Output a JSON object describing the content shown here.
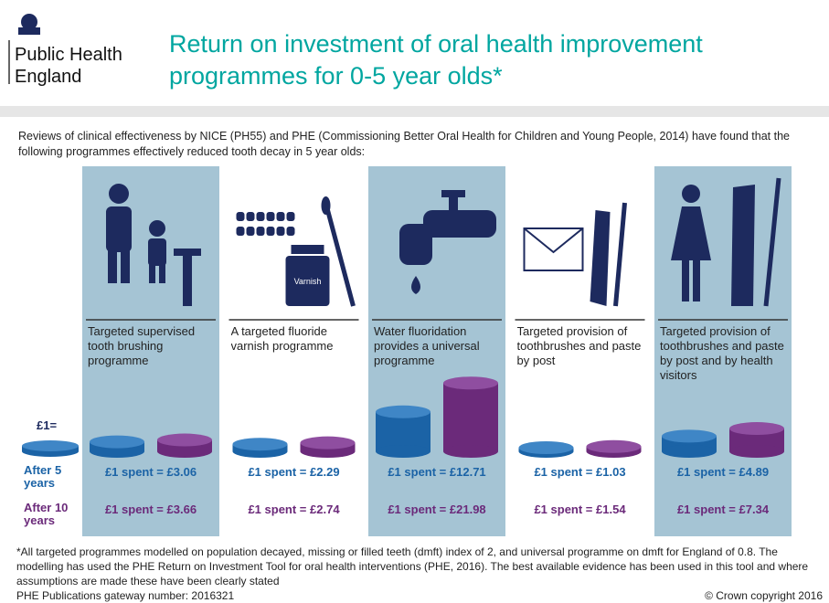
{
  "header": {
    "org_line1": "Public Health",
    "org_line2": "England",
    "title_line1": "Return on investment of oral health improvement",
    "title_line2": "programmes for 0-5 year olds*"
  },
  "intro": "Reviews of clinical effectiveness by NICE (PH55) and PHE (Commissioning Better Oral Health for Children and Young People, 2014) have found that the following programmes effectively reduced tooth decay in 5 year olds:",
  "legend": {
    "unit": "£1=",
    "after_5": "After 5 years",
    "after_10": "After 10 years"
  },
  "programmes": [
    {
      "label": "Targeted supervised tooth brushing programme",
      "after_5": {
        "value": 3.06,
        "label": "£1 spent = £3.06"
      },
      "after_10": {
        "value": 3.66,
        "label": "£1 spent = £3.66"
      }
    },
    {
      "label": "A targeted fluoride varnish programme",
      "icon_text": "Varnish",
      "after_5": {
        "value": 2.29,
        "label": "£1 spent = £2.29"
      },
      "after_10": {
        "value": 2.74,
        "label": "£1 spent = £2.74"
      }
    },
    {
      "label": "Water fluoridation provides a universal programme",
      "after_5": {
        "value": 12.71,
        "label": "£1 spent = £12.71"
      },
      "after_10": {
        "value": 21.98,
        "label": "£1 spent = £21.98"
      }
    },
    {
      "label": "Targeted provision of toothbrushes and paste by post",
      "after_5": {
        "value": 1.03,
        "label": "£1 spent = £1.03"
      },
      "after_10": {
        "value": 1.54,
        "label": "£1 spent = £1.54"
      }
    },
    {
      "label": "Targeted provision of toothbrushes and paste by post and by health visitors",
      "after_5": {
        "value": 4.89,
        "label": "£1 spent = £4.89"
      },
      "after_10": {
        "value": 7.34,
        "label": "£1 spent = £7.34"
      }
    }
  ],
  "footnote": "*All targeted programmes modelled on population decayed, missing or filled teeth (dmft) index of 2, and universal programme on dmft for England of 0.8. The modelling has used the PHE Return on Investment Tool for oral health interventions (PHE, 2016). The best available evidence has been used in this tool and where assumptions are made these have been clearly stated",
  "gateway": "PHE Publications gateway number: 2016321",
  "copyright": "© Crown copyright 2016"
}
